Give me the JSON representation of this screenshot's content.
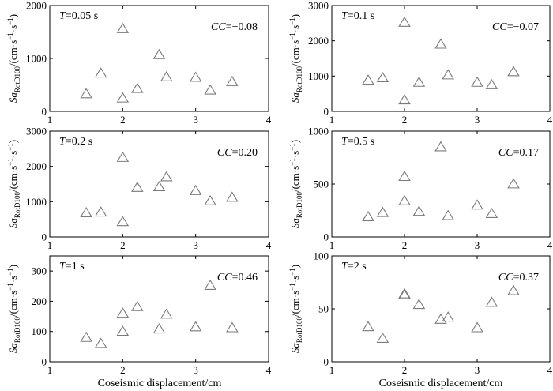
{
  "chart_data": [
    {
      "type": "scatter",
      "period_var": "T",
      "period_text": "=0.05 s",
      "cc_var": "CC",
      "cc_text": "=−0.08",
      "ylabel_main": "Sa",
      "ylabel_sub": "RotD100",
      "ylabel_unit": "/(cm·s",
      "ylabel_exp1": "−1",
      "ylabel_mid": "·s",
      "ylabel_exp2": "−1",
      "ylabel_close": ")",
      "xlim": [
        1,
        4
      ],
      "ylim": [
        0,
        2000
      ],
      "xticks": [
        "1",
        "2",
        "3",
        "4"
      ],
      "yticks": [
        "0",
        "1000",
        "2000"
      ],
      "ytick_values": [
        0,
        1000,
        2000
      ],
      "marker": "open-triangle",
      "marker_color": "#7a7a7a",
      "points": [
        [
          1.5,
          330
        ],
        [
          1.7,
          720
        ],
        [
          2.0,
          250
        ],
        [
          2.0,
          1560
        ],
        [
          2.2,
          430
        ],
        [
          2.5,
          1070
        ],
        [
          2.6,
          650
        ],
        [
          3.0,
          640
        ],
        [
          3.2,
          400
        ],
        [
          3.5,
          560
        ]
      ]
    },
    {
      "type": "scatter",
      "period_var": "T",
      "period_text": "=0.1 s",
      "cc_var": "CC",
      "cc_text": "=−0.07",
      "ylabel_main": "Sa",
      "ylabel_sub": "RotD100",
      "ylabel_unit": "/(cm·s",
      "ylabel_exp1": "−1",
      "ylabel_mid": "·s",
      "ylabel_exp2": "−1",
      "ylabel_close": ")",
      "xlim": [
        1,
        4
      ],
      "ylim": [
        0,
        3000
      ],
      "xticks": [
        "1",
        "2",
        "3",
        "4"
      ],
      "yticks": [
        "0",
        "1000",
        "2000",
        "3000"
      ],
      "ytick_values": [
        0,
        1000,
        2000,
        3000
      ],
      "marker": "open-triangle",
      "marker_color": "#7a7a7a",
      "points": [
        [
          1.5,
          880
        ],
        [
          1.7,
          950
        ],
        [
          2.0,
          320
        ],
        [
          2.0,
          2520
        ],
        [
          2.2,
          820
        ],
        [
          2.5,
          1900
        ],
        [
          2.6,
          1030
        ],
        [
          3.0,
          820
        ],
        [
          3.2,
          750
        ],
        [
          3.5,
          1120
        ]
      ]
    },
    {
      "type": "scatter",
      "period_var": "T",
      "period_text": "=0.2 s",
      "cc_var": "CC",
      "cc_text": "=0.20",
      "ylabel_main": "Sa",
      "ylabel_sub": "RotD100",
      "ylabel_unit": "/(cm·s",
      "ylabel_exp1": "−1",
      "ylabel_mid": "·s",
      "ylabel_exp2": "−1",
      "ylabel_close": ")",
      "xlim": [
        1,
        4
      ],
      "ylim": [
        0,
        3000
      ],
      "xticks": [
        "1",
        "2",
        "3",
        "4"
      ],
      "yticks": [
        "0",
        "1000",
        "2000",
        "3000"
      ],
      "ytick_values": [
        0,
        1000,
        2000,
        3000
      ],
      "marker": "open-triangle",
      "marker_color": "#7a7a7a",
      "points": [
        [
          1.5,
          680
        ],
        [
          1.7,
          700
        ],
        [
          2.0,
          430
        ],
        [
          2.0,
          2250
        ],
        [
          2.2,
          1400
        ],
        [
          2.5,
          1420
        ],
        [
          2.6,
          1700
        ],
        [
          3.0,
          1310
        ],
        [
          3.2,
          1020
        ],
        [
          3.5,
          1120
        ]
      ]
    },
    {
      "type": "scatter",
      "period_var": "T",
      "period_text": "=0.5 s",
      "cc_var": "CC",
      "cc_text": "=0.17",
      "ylabel_main": "Sa",
      "ylabel_sub": "RotD100",
      "ylabel_unit": "/(cm·s",
      "ylabel_exp1": "−1",
      "ylabel_mid": "·s",
      "ylabel_exp2": "−1",
      "ylabel_close": ")",
      "xlim": [
        1,
        4
      ],
      "ylim": [
        0,
        1000
      ],
      "xticks": [
        "1",
        "2",
        "3",
        "4"
      ],
      "yticks": [
        "0",
        "500",
        "1000"
      ],
      "ytick_values": [
        0,
        500,
        1000
      ],
      "marker": "open-triangle",
      "marker_color": "#7a7a7a",
      "points": [
        [
          1.5,
          190
        ],
        [
          1.7,
          230
        ],
        [
          2.0,
          340
        ],
        [
          2.0,
          570
        ],
        [
          2.2,
          240
        ],
        [
          2.5,
          850
        ],
        [
          2.6,
          200
        ],
        [
          3.0,
          300
        ],
        [
          3.2,
          220
        ],
        [
          3.5,
          500
        ]
      ]
    },
    {
      "type": "scatter",
      "period_var": "T",
      "period_text": "=1 s",
      "cc_var": "CC",
      "cc_text": "=0.46",
      "ylabel_main": "Sa",
      "ylabel_sub": "RotD100",
      "ylabel_unit": "/(cm·s",
      "ylabel_exp1": "−1",
      "ylabel_mid": "·s",
      "ylabel_exp2": "−1",
      "ylabel_close": ")",
      "xlim": [
        1,
        4
      ],
      "ylim": [
        0,
        350
      ],
      "xticks": [
        "1",
        "2",
        "3",
        "4"
      ],
      "yticks": [
        "0",
        "100",
        "200",
        "300"
      ],
      "ytick_values": [
        0,
        100,
        200,
        300
      ],
      "marker": "open-triangle",
      "marker_color": "#7a7a7a",
      "points": [
        [
          1.5,
          80
        ],
        [
          1.7,
          60
        ],
        [
          2.0,
          100
        ],
        [
          2.0,
          160
        ],
        [
          2.2,
          182
        ],
        [
          2.5,
          108
        ],
        [
          2.6,
          157
        ],
        [
          3.0,
          115
        ],
        [
          3.2,
          252
        ],
        [
          3.5,
          112
        ]
      ]
    },
    {
      "type": "scatter",
      "period_var": "T",
      "period_text": "=2 s",
      "cc_var": "CC",
      "cc_text": "=0.37",
      "ylabel_main": "Sa",
      "ylabel_sub": "RotD100",
      "ylabel_unit": "/(cm·s",
      "ylabel_exp1": "−1",
      "ylabel_mid": "·s",
      "ylabel_exp2": "−1",
      "ylabel_close": ")",
      "xlim": [
        1,
        4
      ],
      "ylim": [
        0,
        100
      ],
      "xticks": [
        "1",
        "2",
        "3",
        "4"
      ],
      "yticks": [
        "0",
        "50",
        "100"
      ],
      "ytick_values": [
        0,
        50,
        100
      ],
      "marker": "open-triangle",
      "marker_color": "#7a7a7a",
      "points": [
        [
          1.5,
          33
        ],
        [
          1.7,
          22
        ],
        [
          2.0,
          63
        ],
        [
          2.0,
          64
        ],
        [
          2.2,
          54
        ],
        [
          2.5,
          40
        ],
        [
          2.6,
          42
        ],
        [
          3.0,
          32
        ],
        [
          3.2,
          56
        ],
        [
          3.5,
          67
        ]
      ]
    }
  ],
  "xlabel_left": "Coseismic displacement/cm",
  "xlabel_right": "Coseismic displacement/cm"
}
